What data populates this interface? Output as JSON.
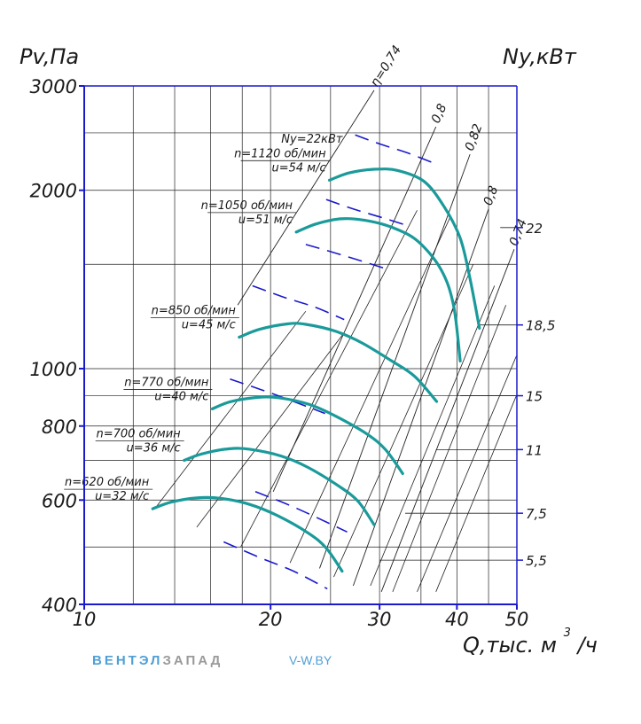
{
  "chart_data": {
    "type": "line",
    "y_axis_title": "Pv,Па",
    "right_axis_title": "Ny,кВт",
    "x_axis_title": "Q,тыс. м",
    "x_axis_title_exp": "3",
    "x_axis_title_tail": "/ч",
    "x_scale": "log",
    "y_scale": "log",
    "xlim": [
      10,
      50
    ],
    "ylim": [
      400,
      3000
    ],
    "x_ticks": [
      {
        "v": 10,
        "label": "10"
      },
      {
        "v": 20,
        "label": "20"
      },
      {
        "v": 30,
        "label": "30"
      },
      {
        "v": 40,
        "label": "40"
      },
      {
        "v": 50,
        "label": "50"
      }
    ],
    "y_ticks": [
      {
        "v": 400,
        "label": "400"
      },
      {
        "v": 600,
        "label": "600"
      },
      {
        "v": 800,
        "label": "800"
      },
      {
        "v": 1000,
        "label": "1000"
      },
      {
        "v": 2000,
        "label": "2000"
      },
      {
        "v": 3000,
        "label": "3000"
      }
    ],
    "grid_x": [
      10,
      12,
      14,
      16,
      18,
      20,
      25,
      30,
      35,
      40,
      45,
      50
    ],
    "grid_y": [
      400,
      500,
      600,
      700,
      800,
      900,
      1000,
      1500,
      2000,
      2500,
      3000
    ],
    "curve_color": "#1a9a9a",
    "power_color": "#1a1acc",
    "axis_color": "#1a1acc",
    "series": [
      {
        "name": "n=620 об/мин",
        "name2": "u=32 м/с",
        "points": [
          [
            12.9,
            580
          ],
          [
            13.8,
            595
          ],
          [
            15.2,
            605
          ],
          [
            16.6,
            604
          ],
          [
            18.5,
            590
          ],
          [
            20.5,
            565
          ],
          [
            23.0,
            528
          ],
          [
            24.6,
            498
          ],
          [
            26.1,
            455
          ]
        ]
      },
      {
        "name": "n=700 об/мин",
        "name2": "u=36 м/с",
        "points": [
          [
            14.5,
            700
          ],
          [
            15.5,
            718
          ],
          [
            17.1,
            732
          ],
          [
            18.5,
            731
          ],
          [
            20.8,
            712
          ],
          [
            23.0,
            681
          ],
          [
            25.8,
            633
          ],
          [
            27.7,
            597
          ],
          [
            29.4,
            545
          ]
        ]
      },
      {
        "name": "n=770 об/мин",
        "name2": "u=40 м/с",
        "points": [
          [
            16.1,
            855
          ],
          [
            17.2,
            879
          ],
          [
            19.0,
            894
          ],
          [
            20.6,
            893
          ],
          [
            23.1,
            870
          ],
          [
            25.5,
            831
          ],
          [
            28.7,
            774
          ],
          [
            30.7,
            729
          ],
          [
            32.7,
            665
          ]
        ]
      },
      {
        "name": "n=850 об/мин",
        "name2": "u=45 м/с",
        "points": [
          [
            17.8,
            1130
          ],
          [
            19.2,
            1165
          ],
          [
            21.3,
            1190
          ],
          [
            22.8,
            1188
          ],
          [
            25.5,
            1156
          ],
          [
            28.1,
            1105
          ],
          [
            31.4,
            1030
          ],
          [
            34.2,
            970
          ],
          [
            37.1,
            880
          ]
        ]
      },
      {
        "name": "n=1050 об/мин",
        "name2": "u=51 м/с",
        "points": [
          [
            22.0,
            1700
          ],
          [
            23.7,
            1755
          ],
          [
            26.0,
            1790
          ],
          [
            28.4,
            1780
          ],
          [
            31.5,
            1730
          ],
          [
            34.6,
            1640
          ],
          [
            37.7,
            1470
          ],
          [
            39.5,
            1280
          ],
          [
            40.5,
            1030
          ]
        ]
      },
      {
        "name": "n=1120 об/мин",
        "name2": "u=54 м/с",
        "points": [
          [
            24.9,
            2080
          ],
          [
            26.8,
            2140
          ],
          [
            29.4,
            2170
          ],
          [
            32.1,
            2160
          ],
          [
            35.4,
            2070
          ],
          [
            38.1,
            1880
          ],
          [
            40.5,
            1660
          ],
          [
            42.0,
            1420
          ],
          [
            43.5,
            1170
          ]
        ]
      }
    ],
    "power_curves": [
      {
        "points": [
          [
            16.8,
            510
          ],
          [
            19.2,
            480
          ],
          [
            21.8,
            455
          ],
          [
            24.7,
            425
          ]
        ]
      },
      {
        "points": [
          [
            18.9,
            620
          ],
          [
            21.3,
            590
          ],
          [
            23.8,
            560
          ],
          [
            26.6,
            530
          ]
        ]
      },
      {
        "points": [
          [
            17.2,
            960
          ],
          [
            19.4,
            920
          ],
          [
            21.8,
            880
          ],
          [
            24.5,
            840
          ]
        ]
      },
      {
        "points": [
          [
            18.7,
            1380
          ],
          [
            21.0,
            1320
          ],
          [
            23.6,
            1270
          ],
          [
            26.3,
            1210
          ]
        ]
      },
      {
        "points": [
          [
            22.8,
            1620
          ],
          [
            25.3,
            1570
          ],
          [
            28.0,
            1520
          ],
          [
            31.0,
            1470
          ]
        ]
      },
      {
        "points": [
          [
            24.6,
            1930
          ],
          [
            27.2,
            1860
          ],
          [
            30.2,
            1800
          ],
          [
            33.5,
            1740
          ]
        ]
      },
      {
        "points": [
          [
            27.4,
            2480
          ],
          [
            30.2,
            2390
          ],
          [
            33.4,
            2310
          ],
          [
            36.8,
            2220
          ]
        ]
      }
    ],
    "efficiency_lines": [
      {
        "label": "η=0,74",
        "points": [
          [
            17.7,
            1280
          ],
          [
            29.4,
            2950
          ]
        ]
      },
      {
        "label": "0,8",
        "points": [
          [
            20.2,
            620
          ],
          [
            37.0,
            2560
          ]
        ]
      },
      {
        "label": "0,82",
        "points": [
          [
            24.0,
            460
          ],
          [
            42.0,
            2300
          ]
        ]
      },
      {
        "label": "0,8",
        "points": [
          [
            27.2,
            430
          ],
          [
            45.0,
            1860
          ]
        ]
      },
      {
        "label": "0,74",
        "points": [
          [
            30.2,
            420
          ],
          [
            49.5,
            1590
          ]
        ]
      }
    ],
    "other_diagonals": [
      {
        "points": [
          [
            13.0,
            580
          ],
          [
            22.8,
            1250
          ]
        ]
      },
      {
        "points": [
          [
            15.2,
            540
          ],
          [
            26.3,
            1150
          ]
        ]
      },
      {
        "points": [
          [
            17.9,
            500
          ],
          [
            34.5,
            1850
          ]
        ]
      },
      {
        "points": [
          [
            21.5,
            470
          ],
          [
            39.0,
            1800
          ]
        ]
      },
      {
        "points": [
          [
            25.3,
            445
          ],
          [
            42.5,
            1500
          ]
        ]
      },
      {
        "points": [
          [
            29.0,
            430
          ],
          [
            46.0,
            1380
          ]
        ]
      },
      {
        "points": [
          [
            31.5,
            420
          ],
          [
            48.0,
            1280
          ]
        ]
      },
      {
        "points": [
          [
            34.5,
            420
          ],
          [
            49.9,
            1050
          ]
        ]
      },
      {
        "points": [
          [
            37.0,
            420
          ],
          [
            49.9,
            900
          ]
        ]
      }
    ],
    "power_scale": [
      {
        "label": "22",
        "y": 1730
      },
      {
        "label": "18,5",
        "y": 1185
      },
      {
        "label": "15",
        "y": 900
      },
      {
        "label": "11",
        "y": 730
      },
      {
        "label": "7,5",
        "y": 570
      },
      {
        "label": "5,5",
        "y": 475
      }
    ],
    "power_leaders": [
      {
        "label": "22",
        "from": [
          47.0,
          1730
        ]
      },
      {
        "label": "18,5",
        "from": [
          43.5,
          1185
        ]
      },
      {
        "label": "15",
        "from": [
          40.5,
          900
        ]
      },
      {
        "label": "11",
        "from": [
          37.0,
          730
        ]
      },
      {
        "label": "7,5",
        "from": [
          33.0,
          570
        ]
      },
      {
        "label": "5,5",
        "from": [
          30.0,
          475
        ]
      }
    ],
    "ny_label": {
      "text": "Ny=22кВт",
      "at": [
        26.5,
        2440
      ]
    }
  },
  "watermark": {
    "brand_part1": "ВЕНТЭЛ",
    "brand_part2": "ЗАПАД",
    "site": "V-W.BY",
    "color1": "#4f9fd6",
    "color2": "#9a9a9a"
  }
}
